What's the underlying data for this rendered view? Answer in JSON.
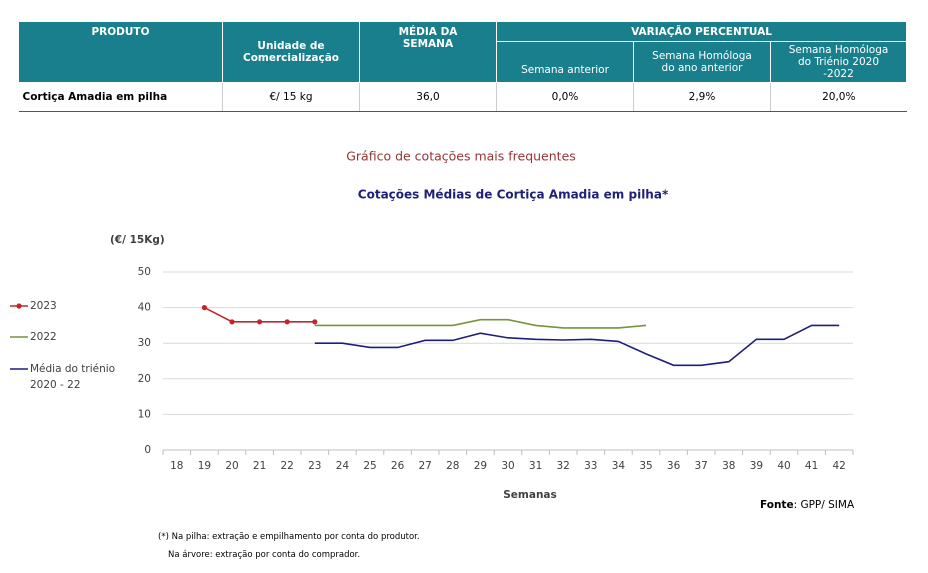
{
  "table": {
    "header_top": [
      "PRODUTO",
      "Unidade de Comercialização",
      "MÉDIA DA SEMANA",
      "VARIAÇÃO PERCENTUAL"
    ],
    "header_sub": [
      "Semana anterior",
      "Semana Homóloga do ano anterior",
      "Semana Homóloga do Triénio 2020 -2022"
    ],
    "rows": [
      [
        "Cortiça Amadia em pilha",
        "€/ 15 kg",
        "36,0",
        "0,0%",
        "2,9%",
        "20,0%"
      ]
    ]
  },
  "chart_data": {
    "type": "line",
    "title": "Gráfico de cotações mais frequentes",
    "subtitle": "Cotações Médias de Cortiça Amadia em pilha*",
    "y_label": "(€/ 15Kg)",
    "x_label": "Semanas",
    "source_label": "Fonte",
    "source_text": ": GPP/ SIMA",
    "categories": [
      "18",
      "19",
      "20",
      "21",
      "22",
      "23",
      "24",
      "25",
      "26",
      "27",
      "28",
      "29",
      "30",
      "31",
      "32",
      "33",
      "34",
      "35",
      "36",
      "37",
      "38",
      "39",
      "40",
      "41",
      "42"
    ],
    "series": [
      {
        "name": "2023",
        "color": "#c0272d",
        "markers": true,
        "values": [
          null,
          40,
          36,
          36,
          36,
          36,
          null,
          null,
          null,
          null,
          null,
          null,
          null,
          null,
          null,
          null,
          null,
          null,
          null,
          null,
          null,
          null,
          null,
          null,
          null
        ]
      },
      {
        "name": "2022",
        "color": "#77933c",
        "markers": false,
        "values": [
          null,
          null,
          null,
          null,
          null,
          35,
          35,
          35,
          35,
          35,
          35,
          36.6,
          36.6,
          35,
          34.3,
          34.3,
          34.3,
          35,
          null,
          null,
          null,
          null,
          null,
          null,
          null
        ]
      },
      {
        "name": "Média do triénio 2020 - 22",
        "color": "#1f1f7a",
        "markers": false,
        "values": [
          null,
          null,
          null,
          null,
          null,
          30,
          30,
          28.8,
          28.8,
          30.8,
          30.8,
          32.8,
          31.5,
          31.1,
          30.9,
          31.1,
          30.5,
          27,
          23.8,
          23.8,
          24.8,
          31.1,
          31.1,
          35,
          35
        ]
      }
    ],
    "ylim": [
      0,
      50
    ],
    "yticks": [
      0,
      10,
      20,
      30,
      40,
      50
    ],
    "grid": true,
    "legend": "left"
  },
  "notes": [
    "(*) Na pilha: extração e empilhamento por conta do produtor.",
    "Na árvore: extração por conta do comprador."
  ]
}
